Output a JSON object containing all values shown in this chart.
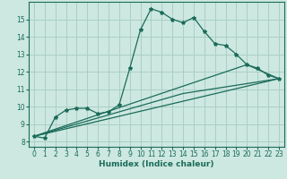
{
  "xlabel": "Humidex (Indice chaleur)",
  "bg_color": "#cde8e0",
  "grid_color": "#aacfc5",
  "line_color": "#1a6b5a",
  "xlim": [
    -0.5,
    23.5
  ],
  "ylim": [
    7.7,
    16.0
  ],
  "yticks": [
    8,
    9,
    10,
    11,
    12,
    13,
    14,
    15
  ],
  "xticks": [
    0,
    1,
    2,
    3,
    4,
    5,
    6,
    7,
    8,
    9,
    10,
    11,
    12,
    13,
    14,
    15,
    16,
    17,
    18,
    19,
    20,
    21,
    22,
    23
  ],
  "series1_x": [
    0,
    1,
    2,
    3,
    4,
    5,
    6,
    7,
    8,
    9,
    10,
    11,
    12,
    13,
    14,
    15,
    16,
    17,
    18,
    19,
    20,
    21,
    22,
    23
  ],
  "series1_y": [
    8.3,
    8.2,
    9.4,
    9.8,
    9.9,
    9.9,
    9.6,
    9.7,
    10.1,
    12.2,
    14.4,
    15.6,
    15.4,
    15.0,
    14.8,
    15.1,
    14.3,
    13.6,
    13.5,
    13.0,
    12.4,
    12.2,
    11.8,
    11.6
  ],
  "series2_x": [
    0,
    23
  ],
  "series2_y": [
    8.3,
    11.6
  ],
  "series3_x": [
    0,
    14,
    23
  ],
  "series3_y": [
    8.3,
    10.75,
    11.6
  ],
  "series4_x": [
    0,
    20,
    23
  ],
  "series4_y": [
    8.3,
    12.4,
    11.6
  ],
  "tick_fontsize": 5.5,
  "xlabel_fontsize": 6.5
}
